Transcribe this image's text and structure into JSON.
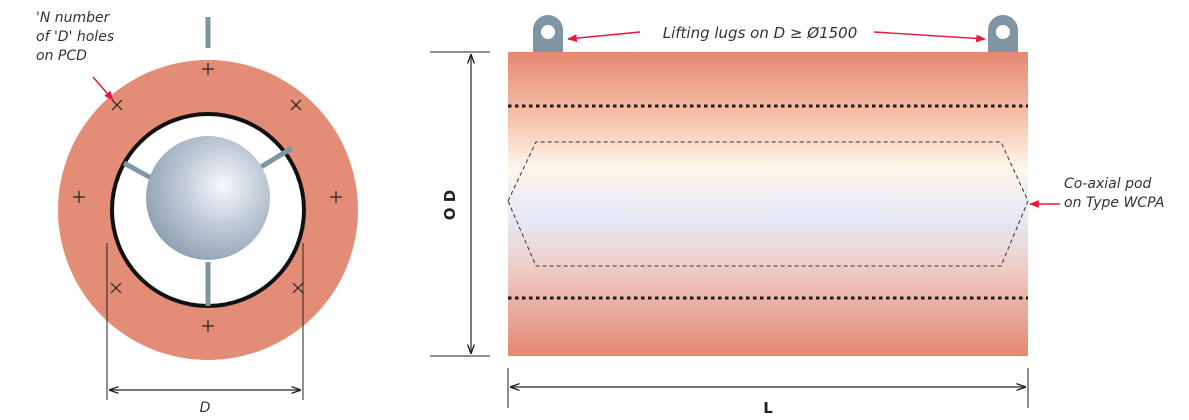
{
  "labels": {
    "holes_line1": "'N number",
    "holes_line2": "of 'D' holes",
    "holes_line3": "on PCD",
    "d_dim": "D",
    "lifting_lugs": "Lifting lugs on D ≥  Ø1500",
    "od_dim": "O D",
    "l_dim": "L",
    "pod_line1": "Co-axial pod",
    "pod_line2": "on Type WCPA"
  },
  "colors": {
    "flange": "#e38c76",
    "body_edge": "#e58872",
    "body_center": "#fff5ea",
    "body_cool": "#d8dcef",
    "sphere_light": "#f6f8fb",
    "sphere_dark": "#8a9caf",
    "strut": "#7f95a4",
    "lug": "#7f95a4",
    "arrow_red": "#e2183d",
    "dim_line": "#222222"
  },
  "icons": {
    "bolt_hole_cross": "plus-icon",
    "bolt_hole_x": "x-icon"
  }
}
